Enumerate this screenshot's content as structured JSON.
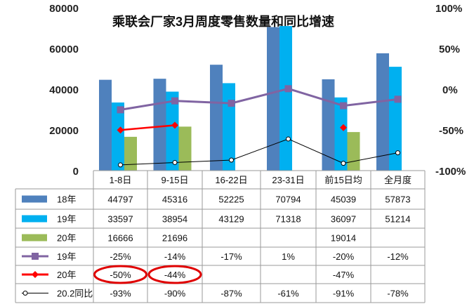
{
  "chart_data": {
    "type": "bar+line+table",
    "title": "乘联会厂家3月周度零售数量和同比增速",
    "categories": [
      "1-8日",
      "9-15日",
      "16-22日",
      "23-31日",
      "前15日均",
      "全月度"
    ],
    "y_left": {
      "range": [
        0,
        80000
      ],
      "ticks": [
        "0",
        "20000",
        "40000",
        "60000",
        "80000"
      ]
    },
    "y_right": {
      "range": [
        -100,
        100
      ],
      "ticks": [
        "-100%",
        "-50%",
        "0%",
        "50%",
        "100%"
      ]
    },
    "bar_series": [
      {
        "name": "18年",
        "color": "#4F81BD",
        "values": [
          44797,
          45316,
          52225,
          70794,
          45039,
          57873
        ],
        "display": [
          "44797",
          "45316",
          "52225",
          "70794",
          "45039",
          "57873"
        ]
      },
      {
        "name": "19年",
        "color": "#00B0F0",
        "values": [
          33597,
          38954,
          43129,
          71318,
          36097,
          51214
        ],
        "display": [
          "33597",
          "38954",
          "43129",
          "71318",
          "36097",
          "51214"
        ]
      },
      {
        "name": "20年",
        "color": "#9BBB59",
        "values": [
          16666,
          21696,
          null,
          null,
          19014,
          null
        ],
        "display": [
          "16666",
          "21696",
          "",
          "",
          "19014",
          ""
        ]
      }
    ],
    "line_series": [
      {
        "name": "19年",
        "color": "#8064A2",
        "marker": "square",
        "values": [
          -25,
          -14,
          -17,
          1,
          -20,
          -12
        ],
        "display": [
          "-25%",
          "-14%",
          "-17%",
          "1%",
          "-20%",
          "-12%"
        ]
      },
      {
        "name": "20年",
        "color": "#FF0000",
        "marker": "diamond",
        "values": [
          -50,
          -44,
          null,
          null,
          -47,
          null
        ],
        "display": [
          "-50%",
          "-44%",
          "",
          "",
          "-47%",
          ""
        ]
      },
      {
        "name": "20.2同比",
        "color": "#000000",
        "marker": "circle-open",
        "values": [
          -93,
          -90,
          -87,
          -61,
          -91,
          -78
        ],
        "display": [
          "-93%",
          "-90%",
          "-87%",
          "-61%",
          "-91%",
          "-78%"
        ]
      }
    ],
    "highlight_circles": [
      "-50%",
      "-44%"
    ],
    "grid": false
  }
}
